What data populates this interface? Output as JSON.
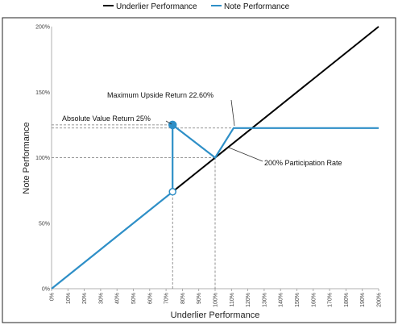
{
  "chart_data": {
    "type": "line",
    "title": "",
    "xlabel": "Underlier Performance",
    "ylabel": "Note Performance",
    "xlim": [
      0,
      200
    ],
    "ylim": [
      0,
      200
    ],
    "x_ticks": [
      "0%",
      "10%",
      "20%",
      "30%",
      "40%",
      "50%",
      "60%",
      "70%",
      "80%",
      "90%",
      "100%",
      "110%",
      "120%",
      "130%",
      "140%",
      "150%",
      "160%",
      "170%",
      "180%",
      "190%",
      "200%"
    ],
    "y_ticks": [
      "0%",
      "50%",
      "100%",
      "150%",
      "200%"
    ],
    "grid": false,
    "legend_position": "top-center",
    "series": [
      {
        "name": "Underlier Performance",
        "color": "#000000",
        "x": [
          74,
          200
        ],
        "y": [
          74,
          200
        ]
      },
      {
        "name": "Note Performance",
        "color": "#2e8fc7",
        "x": [
          0,
          74,
          74,
          100,
          111.3,
          200
        ],
        "y": [
          0,
          74,
          125,
          100,
          122.6,
          122.6
        ]
      }
    ],
    "markers": [
      {
        "x": 74,
        "y": 125,
        "style": "filled"
      },
      {
        "x": 74,
        "y": 74,
        "style": "open"
      }
    ],
    "annotations": [
      {
        "text": "Maximum Upside Return 22.60%",
        "x": 111.3,
        "y": 122.6
      },
      {
        "text": "Absolute Value Return 25%",
        "x": 74,
        "y": 125
      },
      {
        "text": "200% Participation Rate",
        "x": 104,
        "y": 110
      }
    ],
    "reference_lines": [
      {
        "orientation": "horizontal",
        "y": 125
      },
      {
        "orientation": "horizontal",
        "y": 122.6
      },
      {
        "orientation": "horizontal",
        "y": 100
      },
      {
        "orientation": "vertical",
        "x": 74
      },
      {
        "orientation": "vertical",
        "x": 100
      }
    ]
  },
  "colors": {
    "underlier": "#000000",
    "note": "#2e8fc7",
    "reference": "#777777",
    "frame": "#222222"
  }
}
